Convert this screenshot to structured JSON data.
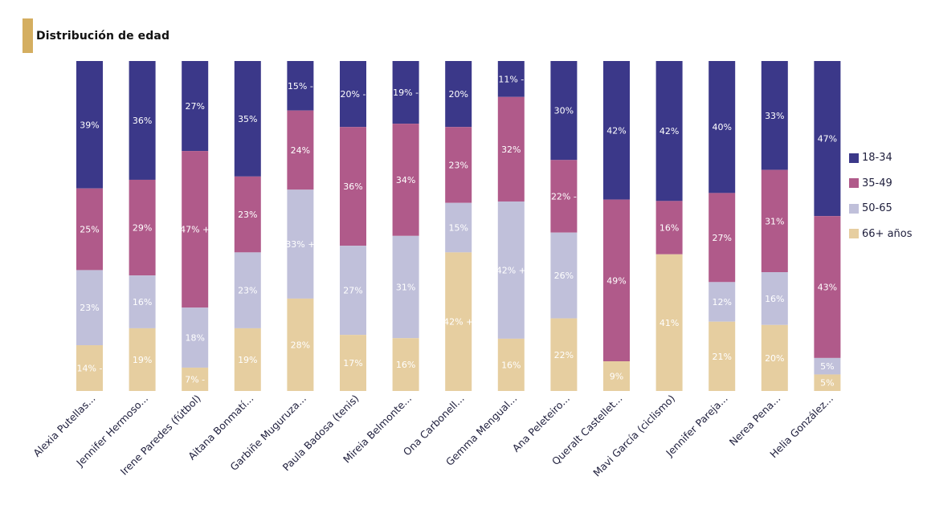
{
  "title": "Distribución de edad",
  "colors": {
    "accent": "#d4ae60",
    "18-34": "#3b3889",
    "35-49": "#b05a8a",
    "50-65": "#c0c0da",
    "66+": "#e6cea0"
  },
  "legend": [
    {
      "label": "18-34",
      "color": "#3b3889"
    },
    {
      "label": "35-49",
      "color": "#b05a8a"
    },
    {
      "label": "50-65",
      "color": "#c0c0da"
    },
    {
      "label": "66+ años",
      "color": "#e6cea0"
    }
  ],
  "chart_data": {
    "type": "bar",
    "stacked": true,
    "normalized": true,
    "title": "Distribución de edad",
    "xlabel": "",
    "ylabel": "",
    "ylim": [
      0,
      100
    ],
    "grid": false,
    "legend_position": "right",
    "categories": [
      "Alexia Putellas...",
      "Jennifer Hermoso...",
      "Irene Paredes (fútbol)",
      "Aitana Bonmatí...",
      "Garbiñe Muguruza...",
      "Paula Badosa (tenis)",
      "Mireia Belmonte...",
      "Ona Carbonell...",
      "Gemma Mengual...",
      "Ana Peleteiro...",
      "Queralt Castellet...",
      "Mavi García (ciclismo)",
      "Jennifer Pareja...",
      "Nerea Pena...",
      "Helia González..."
    ],
    "series": [
      {
        "name": "18-34",
        "values": [
          39,
          36,
          27,
          35,
          15,
          20,
          19,
          20,
          11,
          30,
          42,
          42,
          40,
          33,
          47
        ],
        "labels": [
          "39%",
          "36%",
          "27%",
          "35%",
          "15% -",
          "20% -",
          "19% -",
          "20%",
          "11% -",
          "30%",
          "42%",
          "42%",
          "40%",
          "33%",
          "47%"
        ]
      },
      {
        "name": "35-49",
        "values": [
          25,
          29,
          47,
          23,
          24,
          36,
          34,
          23,
          32,
          22,
          49,
          16,
          27,
          31,
          43
        ],
        "labels": [
          "25%",
          "29%",
          "47% +",
          "23%",
          "24%",
          "36%",
          "34%",
          "23%",
          "32%",
          "22% -",
          "49%",
          "16%",
          "27%",
          "31%",
          "43%"
        ]
      },
      {
        "name": "50-65",
        "values": [
          23,
          16,
          18,
          23,
          33,
          27,
          31,
          15,
          42,
          26,
          0,
          0,
          12,
          16,
          5
        ],
        "labels": [
          "23%",
          "16%",
          "18%",
          "23%",
          "33% +",
          "27%",
          "31%",
          "15%",
          "42% +",
          "26%",
          "",
          "",
          "12%",
          "16%",
          "5%"
        ]
      },
      {
        "name": "66+ años",
        "values": [
          14,
          19,
          7,
          19,
          28,
          17,
          16,
          42,
          16,
          22,
          9,
          41,
          21,
          20,
          5
        ],
        "labels": [
          "14% -",
          "19%",
          "7% -",
          "19%",
          "28%",
          "17%",
          "16%",
          "42% +",
          "16%",
          "22%",
          "9%",
          "41%",
          "21%",
          "20%",
          "5%"
        ]
      }
    ]
  }
}
